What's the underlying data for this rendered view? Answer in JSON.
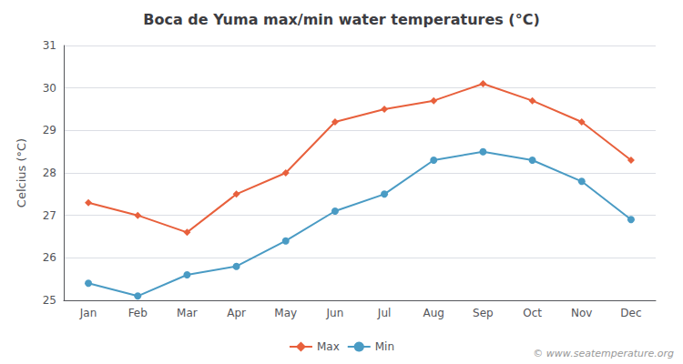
{
  "chart_data": {
    "type": "line",
    "title": "Boca de Yuma max/min water temperatures (°C)",
    "ylabel": "Celcius (°C)",
    "categories": [
      "Jan",
      "Feb",
      "Mar",
      "Apr",
      "May",
      "Jun",
      "Jul",
      "Aug",
      "Sep",
      "Oct",
      "Nov",
      "Dec"
    ],
    "series": [
      {
        "name": "Max",
        "color": "#e8603c",
        "marker": "diamond",
        "values": [
          27.3,
          27.0,
          26.6,
          27.5,
          28.0,
          29.2,
          29.5,
          29.7,
          30.1,
          29.7,
          29.2,
          28.3
        ]
      },
      {
        "name": "Min",
        "color": "#4a9bc4",
        "marker": "circle",
        "values": [
          25.4,
          25.1,
          25.6,
          25.8,
          26.4,
          27.1,
          27.5,
          28.3,
          28.5,
          28.3,
          27.8,
          26.9
        ]
      }
    ],
    "ylim": [
      25.0,
      31.0
    ],
    "yticks": [
      25,
      26,
      27,
      28,
      29,
      30,
      31
    ],
    "grid": true,
    "legend": "bottom",
    "annotations": [
      "© www.seatemperature.org"
    ]
  }
}
